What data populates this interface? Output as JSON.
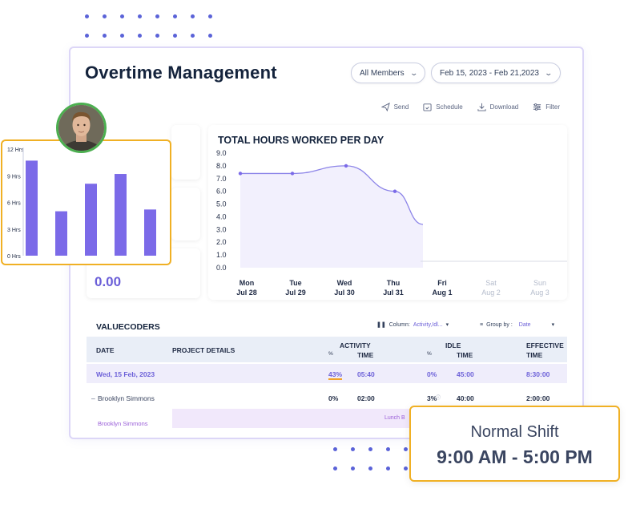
{
  "app": {
    "title": "Overtime Management",
    "members_filter": "All Members",
    "date_range": "Feb 15, 2023 - Feb 21,2023"
  },
  "toolbar": {
    "send": "Send",
    "schedule": "Schedule",
    "download": "Download",
    "filter": "Filter"
  },
  "left_panel": {
    "value": "0.00"
  },
  "chart_data": [
    {
      "type": "line",
      "title": "TOTAL HOURS WORKED PER DAY",
      "categories": [
        [
          "Mon",
          "Jul 28"
        ],
        [
          "Tue",
          "Jul 29"
        ],
        [
          "Wed",
          "Jul 30"
        ],
        [
          "Thu",
          "Jul 31"
        ],
        [
          "Fri",
          "Aug 1"
        ],
        [
          "Sat",
          "Aug 2"
        ],
        [
          "Sun",
          "Aug 3"
        ]
      ],
      "values": [
        7.4,
        7.4,
        8.0,
        6.0,
        3.4,
        null,
        null
      ],
      "yticks": [
        "9.0",
        "8.0",
        "7.0",
        "6.0",
        "5.0",
        "4.0",
        "3.0",
        "2.0",
        "1.0",
        "0.0"
      ],
      "ylim": [
        0,
        9
      ],
      "series_color": "#8c84e8",
      "active_days": 5
    },
    {
      "type": "bar",
      "yticks": [
        "12 Hrs",
        "9 Hrs",
        "6 Hrs",
        "3 Hrs",
        "0 Hrs"
      ],
      "ylim": [
        0,
        12
      ],
      "values": [
        10.7,
        5.0,
        8.1,
        9.2,
        5.2
      ],
      "bar_color": "#7b6ae8"
    }
  ],
  "table": {
    "section_title": "VALUECODERS",
    "column_label": "Column:",
    "column_value": "Activity,Idl...",
    "group_label": "Group by :",
    "group_value": "Date",
    "headers": {
      "date": "DATE",
      "project": "PROJECT DETAILS",
      "activity": "ACTIVITY",
      "activity_pct": "%",
      "activity_time": "TIME",
      "idle": "IDLE",
      "idle_pct": "%",
      "idle_time": "TIME",
      "effective": "EFFECTIVE",
      "effective_time": "TIME"
    },
    "rows": [
      {
        "date": "Wed, 15 Feb, 2023",
        "activity_pct": "43%",
        "activity_time": "05:40",
        "idle_pct": "0%",
        "idle_time": "45:00",
        "effective": "8:30:00"
      },
      {
        "name": "Brooklyn Simmons",
        "activity_pct": "0%",
        "activity_time": "02:00",
        "idle_pct": "3%",
        "idle_time": "40:00",
        "effective": "2:00:00"
      }
    ],
    "sub_name": "Brooklyn Simmons",
    "lunch_label": "Lunch B"
  },
  "shift": {
    "label": "Normal Shift",
    "time": "9:00 AM - 5:00 PM"
  }
}
